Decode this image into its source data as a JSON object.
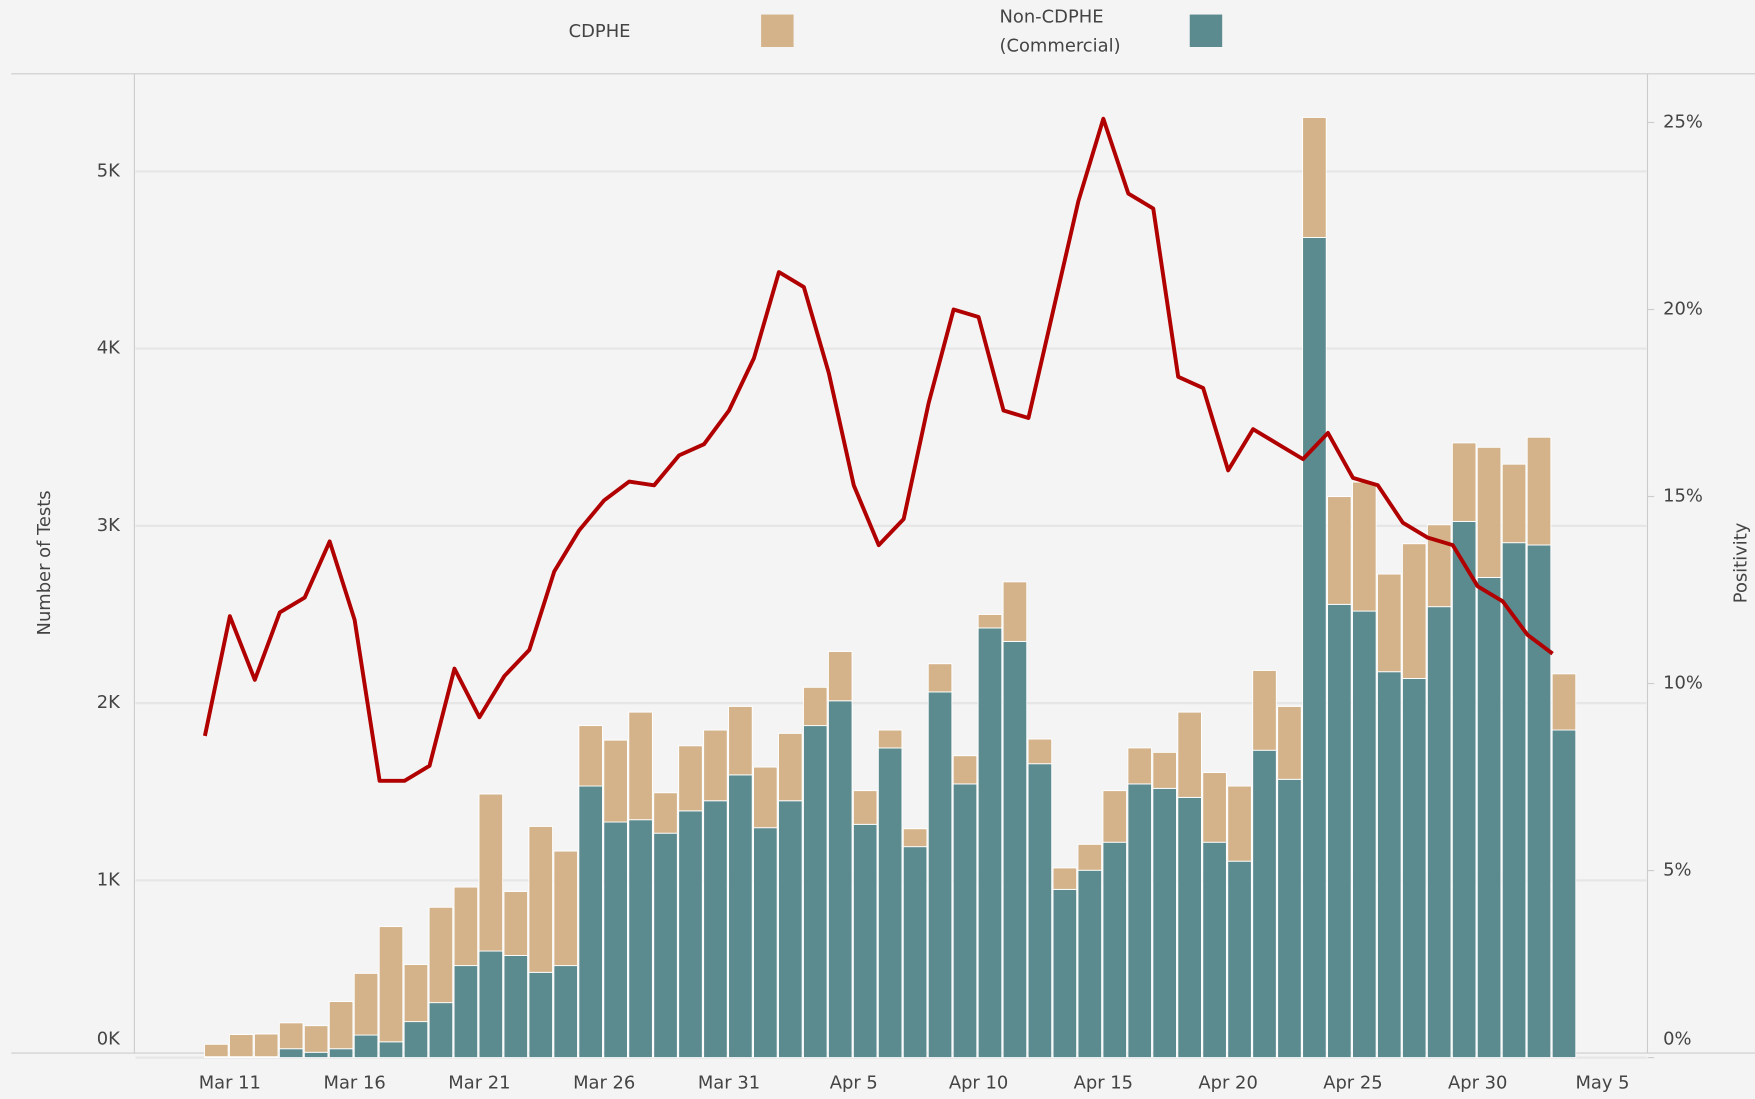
{
  "chart_data": {
    "type": "bar",
    "stacked": true,
    "y_label": "Number of Tests",
    "y2_label": "Positivity",
    "categories": [
      null,
      "Mar 11",
      null,
      null,
      null,
      null,
      "Mar 16",
      null,
      null,
      null,
      null,
      "Mar 21",
      null,
      null,
      null,
      null,
      "Mar 26",
      null,
      null,
      null,
      null,
      "Mar 31",
      null,
      null,
      null,
      null,
      "Apr 5",
      null,
      null,
      null,
      null,
      "Apr 10",
      null,
      null,
      null,
      null,
      "Apr 15",
      null,
      null,
      null,
      null,
      "Apr 20",
      null,
      null,
      null,
      null,
      "Apr 25",
      null,
      null,
      null,
      null,
      "Apr 30",
      null,
      null,
      null,
      null,
      "May 5"
    ],
    "series": [
      {
        "name": "CDPHE",
        "color": "#d4b38a",
        "values": [
          70,
          125,
          128,
          146,
          150,
          266,
          348,
          650,
          322,
          538,
          443,
          886,
          361,
          823,
          646,
          341,
          462,
          607,
          228,
          367,
          399,
          386,
          342,
          380,
          216,
          278,
          190,
          101,
          101,
          159,
          159,
          76,
          336,
          139,
          121,
          146,
          291,
          203,
          203,
          481,
          393,
          424,
          450,
          411,
          677,
          608,
          728,
          551,
          760,
          462,
          443,
          734,
          443,
          608,
          317,
          null,
          null
        ]
      },
      {
        "name": "Non-CDPHE (Commercial)",
        "color": "#5b8a8f",
        "values": [
          5,
          5,
          5,
          50,
          30,
          50,
          127,
          89,
          203,
          310,
          519,
          601,
          576,
          481,
          519,
          1532,
          1329,
          1342,
          1266,
          1392,
          1449,
          1595,
          1297,
          1449,
          1873,
          2013,
          1316,
          1747,
          1190,
          2063,
          1544,
          2424,
          2348,
          1658,
          949,
          1057,
          1215,
          1544,
          1519,
          1468,
          1215,
          1108,
          1734,
          1570,
          4627,
          2557,
          2519,
          2177,
          2139,
          2544,
          3025,
          2709,
          2905,
          2892,
          1848,
          null,
          null
        ]
      },
      {
        "type": "line",
        "axis": "y2",
        "color": "#b00000",
        "values": [
          8.6,
          11.8,
          10.1,
          11.9,
          12.3,
          13.8,
          11.7,
          7.4,
          7.4,
          7.8,
          10.4,
          9.1,
          10.2,
          10.9,
          13.0,
          14.1,
          14.9,
          15.4,
          15.3,
          16.1,
          16.4,
          17.3,
          18.7,
          21.0,
          20.6,
          18.3,
          15.3,
          13.7,
          14.4,
          17.5,
          20.0,
          19.8,
          17.3,
          17.1,
          20.0,
          22.9,
          25.1,
          23.1,
          22.7,
          18.2,
          17.9,
          15.7,
          16.8,
          16.4,
          16.0,
          16.7,
          15.5,
          15.3,
          14.3,
          13.9,
          13.7,
          12.6,
          12.2,
          11.3,
          10.8,
          null,
          null
        ]
      }
    ],
    "ylim": [
      0,
      5550
    ],
    "yticks": [
      {
        "value": 0,
        "label": "0K"
      },
      {
        "value": 1000,
        "label": "1K"
      },
      {
        "value": 2000,
        "label": "2K"
      },
      {
        "value": 3000,
        "label": "3K"
      },
      {
        "value": 4000,
        "label": "4K"
      },
      {
        "value": 5000,
        "label": "5K"
      }
    ],
    "y2lim": [
      0,
      26.3
    ],
    "y2ticks": [
      {
        "value": 0,
        "label": "0%"
      },
      {
        "value": 5,
        "label": "5%"
      },
      {
        "value": 10,
        "label": "10%"
      },
      {
        "value": 15,
        "label": "15%"
      },
      {
        "value": 20,
        "label": "20%"
      },
      {
        "value": 25,
        "label": "25%"
      }
    ],
    "grid": true,
    "legend": "top"
  }
}
